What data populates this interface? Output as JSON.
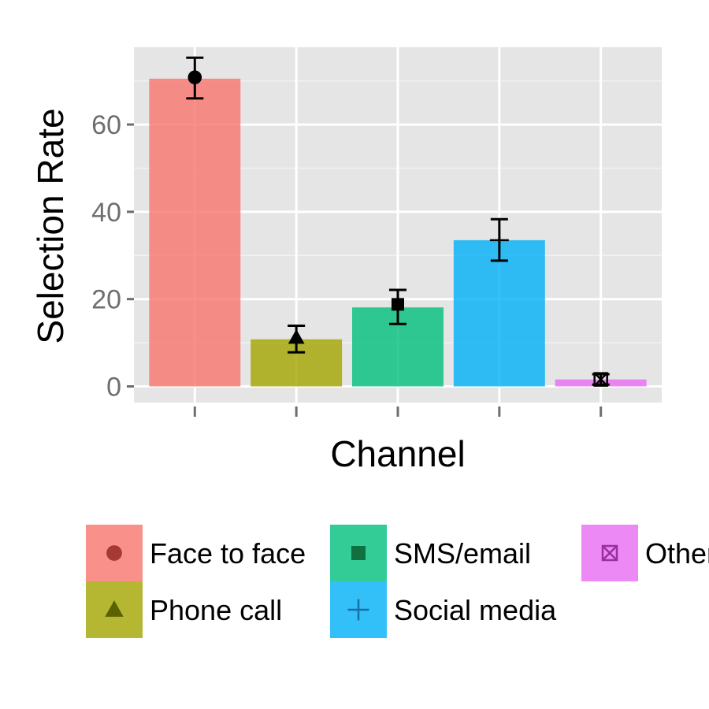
{
  "chart_data": {
    "type": "bar",
    "xlabel": "Channel",
    "ylabel": "Selection Rate",
    "ylim": [
      -3.7,
      77.7
    ],
    "yticks": [
      0,
      20,
      40,
      60
    ],
    "grid": true,
    "legend_placement": "bottom",
    "categories": [
      "Face to face",
      "Phone call",
      "SMS/email",
      "Social media",
      "Other"
    ],
    "values": [
      70.5,
      10.8,
      18.1,
      33.5,
      1.6
    ],
    "points": [
      70.8,
      11.2,
      18.8,
      33.5,
      1.6
    ],
    "error_low": [
      66.0,
      7.8,
      14.3,
      28.8,
      0.4
    ],
    "error_high": [
      75.3,
      13.9,
      22.1,
      38.3,
      2.8
    ],
    "colors": [
      "#f8766d",
      "#a3a500",
      "#00bf7d",
      "#00b0f6",
      "#e76bf3"
    ],
    "markers": [
      "circle-icon",
      "triangle-icon",
      "square-icon",
      "plus-icon",
      "boxed-x-icon"
    ],
    "marker_colors": [
      "#a63a33",
      "#5b6000",
      "#0f7040",
      "#1a6fa8",
      "#9a2fa0"
    ],
    "legend": [
      "Face to face",
      "Phone call",
      "SMS/email",
      "Social media",
      "Other"
    ]
  }
}
